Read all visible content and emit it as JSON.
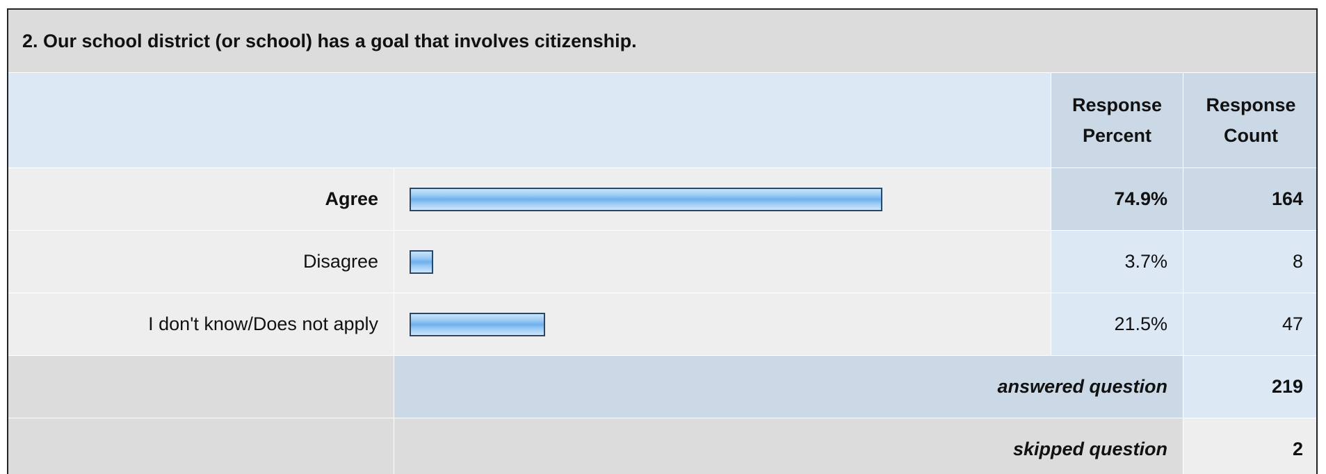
{
  "title": "2. Our school district (or school) has a goal that involves citizenship.",
  "columns": [
    "Response Percent",
    "Response Count"
  ],
  "rows": [
    {
      "label": "Agree",
      "percent": 74.9,
      "percent_label": "74.9%",
      "count": 164
    },
    {
      "label": "Disagree",
      "percent": 3.7,
      "percent_label": "3.7%",
      "count": 8
    },
    {
      "label": "I don't know/Does not apply",
      "percent": 21.5,
      "percent_label": "21.5%",
      "count": 47
    }
  ],
  "answered": {
    "label": "answered question",
    "value": 219
  },
  "skipped": {
    "label": "skipped question",
    "value": 2
  }
}
